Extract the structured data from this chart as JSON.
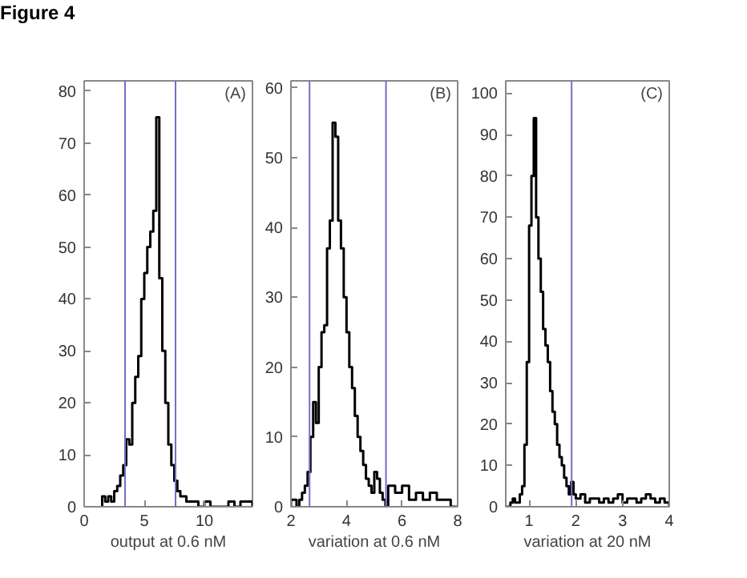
{
  "chart_data": [
    {
      "type": "histogram",
      "title": "Figure 4",
      "xlabel": "output at 0.6 nM",
      "annotations": [
        "(A)"
      ],
      "color": "#000000",
      "bins": [
        1.5,
        1.75,
        2.0,
        2.25,
        2.5,
        2.75,
        3.0,
        3.25,
        3.5,
        3.75,
        4.0,
        4.25,
        4.5,
        4.75,
        5.0,
        5.25,
        5.5,
        5.75,
        6.0,
        6.25,
        6.5,
        6.75,
        7.0,
        7.25,
        7.5,
        7.75,
        8.0,
        8.25,
        8.5,
        8.75,
        9.0,
        9.5,
        10.0,
        10.5,
        11.0,
        11.5,
        12.0,
        12.5,
        13.0,
        13.5,
        14.0
      ],
      "values": [
        2,
        1,
        2,
        1,
        3,
        4,
        6,
        8,
        13,
        12,
        20,
        25,
        29,
        40,
        45,
        50,
        53,
        57,
        75,
        44,
        30,
        20,
        12,
        8,
        5,
        3,
        2,
        2,
        1,
        1,
        1,
        0,
        1,
        0,
        0,
        0,
        1,
        0,
        1,
        1
      ],
      "xlim": [
        0,
        14
      ],
      "ylim": [
        0,
        82
      ],
      "xticks": [
        0,
        5,
        10
      ],
      "yticks": [
        0,
        10,
        20,
        30,
        40,
        50,
        60,
        70,
        80
      ],
      "ref_lines": [
        {
          "axis": "x",
          "value": 3.4,
          "color": "#7070c8"
        },
        {
          "axis": "x",
          "value": 7.6,
          "color": "#7070c8"
        }
      ],
      "grid": false
    },
    {
      "type": "histogram",
      "xlabel": "variation at 0.6 nM",
      "annotations": [
        "(B)"
      ],
      "color": "#000000",
      "bins": [
        2.0,
        2.1,
        2.2,
        2.3,
        2.4,
        2.5,
        2.6,
        2.7,
        2.8,
        2.9,
        3.0,
        3.1,
        3.2,
        3.3,
        3.4,
        3.5,
        3.6,
        3.7,
        3.8,
        3.9,
        4.0,
        4.1,
        4.2,
        4.3,
        4.4,
        4.5,
        4.6,
        4.7,
        4.8,
        4.9,
        5.0,
        5.1,
        5.2,
        5.3,
        5.4,
        5.5,
        5.75,
        6.0,
        6.25,
        6.5,
        6.75,
        7.0,
        7.25,
        7.5,
        7.75,
        8.0
      ],
      "values": [
        1,
        1,
        0,
        1,
        2,
        3,
        5,
        10,
        15,
        12,
        20,
        25,
        26,
        37,
        41,
        55,
        53,
        41,
        37,
        30,
        25,
        20,
        17,
        13,
        10,
        8,
        6,
        4,
        3,
        2,
        5,
        4,
        2,
        1,
        0,
        3,
        2,
        3,
        1,
        2,
        1,
        2,
        1,
        1,
        0
      ],
      "xlim": [
        2,
        8
      ],
      "ylim": [
        0,
        61
      ],
      "xticks": [
        2,
        4,
        6,
        8
      ],
      "yticks": [
        0,
        10,
        20,
        30,
        40,
        50,
        60
      ],
      "ref_lines": [
        {
          "axis": "x",
          "value": 2.67,
          "color": "#7070c8"
        },
        {
          "axis": "x",
          "value": 5.42,
          "color": "#7070c8"
        }
      ],
      "grid": false
    },
    {
      "type": "histogram",
      "xlabel": "variation at 20 nM",
      "annotations": [
        "(C)"
      ],
      "color": "#000000",
      "bins": [
        0.5,
        0.55,
        0.6,
        0.65,
        0.7,
        0.75,
        0.8,
        0.85,
        0.9,
        0.95,
        1.0,
        1.05,
        1.1,
        1.15,
        1.2,
        1.25,
        1.3,
        1.35,
        1.4,
        1.45,
        1.5,
        1.55,
        1.6,
        1.65,
        1.7,
        1.75,
        1.8,
        1.85,
        1.9,
        1.95,
        2.0,
        2.1,
        2.2,
        2.3,
        2.4,
        2.5,
        2.6,
        2.7,
        2.8,
        2.9,
        3.0,
        3.1,
        3.2,
        3.3,
        3.4,
        3.5,
        3.6,
        3.7,
        3.8,
        3.9,
        4.0
      ],
      "values": [
        0,
        0,
        1,
        2,
        1,
        1,
        3,
        5,
        15,
        35,
        68,
        80,
        94,
        70,
        60,
        52,
        43,
        39,
        35,
        28,
        23,
        20,
        15,
        12,
        10,
        7,
        5,
        3,
        6,
        3,
        2,
        3,
        1,
        2,
        2,
        1,
        2,
        1,
        2,
        3,
        1,
        2,
        2,
        1,
        2,
        3,
        2,
        1,
        2,
        1
      ],
      "xlim": [
        0.5,
        4
      ],
      "ylim": [
        0,
        103
      ],
      "xticks": [
        1,
        2,
        3,
        4
      ],
      "yticks": [
        0,
        10,
        20,
        30,
        40,
        50,
        60,
        70,
        80,
        90,
        100
      ],
      "ref_lines": [
        {
          "axis": "x",
          "value": 1.91,
          "color": "#7070c8"
        }
      ],
      "grid": false
    }
  ]
}
